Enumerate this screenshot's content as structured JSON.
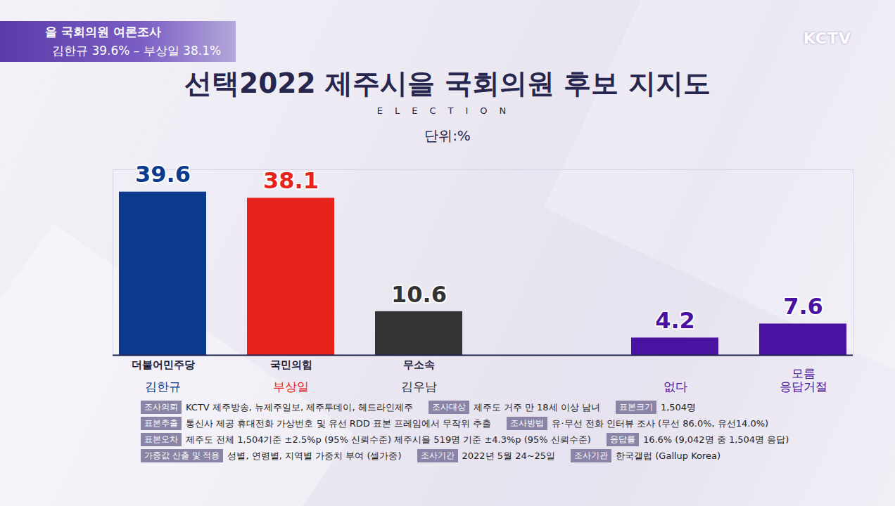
{
  "banner": {
    "title": "을 국회의원 여론조사",
    "subtitle": "김한규 39.6% – 부상일 38.1%"
  },
  "broadcaster": "KCTV",
  "chart_data": {
    "type": "bar",
    "title": "선택2022 제주시을 국회의원 후보 지지도",
    "subtitle": "ELECTION",
    "unit": "단위:%",
    "categories": [
      "김한규",
      "부상일",
      "김우남",
      "없다",
      "모름\n응답거절"
    ],
    "parties": [
      "더불어민주당",
      "국민의힘",
      "무소속",
      null,
      null
    ],
    "values": [
      39.6,
      38.1,
      10.6,
      4.2,
      7.6
    ],
    "colors": [
      "#0b3a8c",
      "#e5231b",
      "#333333",
      "#4a12a0",
      "#4a12a0"
    ],
    "ylim": [
      0,
      45
    ],
    "yticks": [],
    "data_labels": true,
    "tick_labels": false
  },
  "survey_notes": [
    [
      [
        "조사의뢰",
        "KCTV 제주방송, 뉴제주일보, 제주투데이, 헤드라인제주"
      ],
      [
        "조사대상",
        "제주도 거주 만 18세 이상 남녀"
      ],
      [
        "표본크기",
        "1,504명"
      ]
    ],
    [
      [
        "표본추출",
        "통신사 제공 휴대전화 가상번호 및 유선 RDD 표본 프레임에서 무작위 추출"
      ],
      [
        "조사방법",
        "유·무선 전화 인터뷰 조사 (무선 86.0%, 유선14.0%)"
      ]
    ],
    [
      [
        "표본오차",
        "제주도 전체 1,504기준 ±2.5%p (95% 신뢰수준) 제주시을 519명 기준 ±4.3%p (95% 신뢰수준)"
      ],
      [
        "응답률",
        "16.6% (9,042명 중 1,504명 응답)"
      ]
    ],
    [
      [
        "가중값 산출 및 적용",
        "성별, 연령별, 지역별 가중치 부여 (셀가중)"
      ],
      [
        "조사기간",
        "2022년 5월 24~25일"
      ],
      [
        "조사기관",
        "한국갤럽 (Gallup Korea)"
      ]
    ]
  ]
}
